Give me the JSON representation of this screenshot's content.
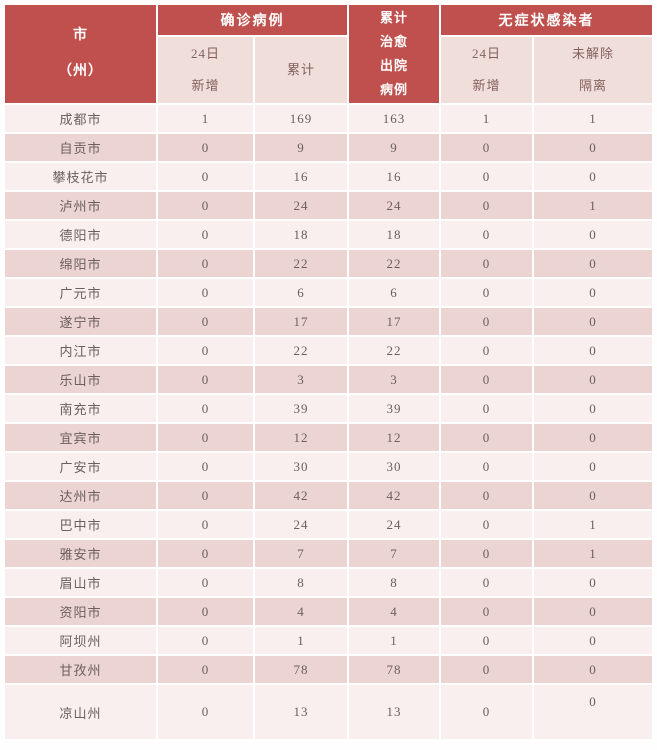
{
  "colors": {
    "header_red": "#c0504d",
    "subheader_pink": "#f0dedb",
    "row_light": "#f8efee",
    "row_dark": "#ecd4d2",
    "body_text": "#6b605d",
    "subheader_text": "#84615d",
    "grid_white": "#ffffff",
    "page_bg": "#fefefe"
  },
  "table": {
    "group_headers": {
      "city": "市\n（州）",
      "confirmed": "确诊病例",
      "cured": "累计\n治愈\n出院\n病例",
      "asymptomatic": "无症状感染者"
    },
    "sub_headers": {
      "confirmed_new": "24日\n新增",
      "confirmed_total": "累计",
      "asym_new": "24日\n新增",
      "asym_quarantine": "未解除\n隔离"
    },
    "rows": [
      {
        "city": "成都市",
        "values": [
          "1",
          "169",
          "163",
          "1",
          "1"
        ]
      },
      {
        "city": "自贡市",
        "values": [
          "0",
          "9",
          "9",
          "0",
          "0"
        ]
      },
      {
        "city": "攀枝花市",
        "values": [
          "0",
          "16",
          "16",
          "0",
          "0"
        ]
      },
      {
        "city": "泸州市",
        "values": [
          "0",
          "24",
          "24",
          "0",
          "1"
        ]
      },
      {
        "city": "德阳市",
        "values": [
          "0",
          "18",
          "18",
          "0",
          "0"
        ]
      },
      {
        "city": "绵阳市",
        "values": [
          "0",
          "22",
          "22",
          "0",
          "0"
        ]
      },
      {
        "city": "广元市",
        "values": [
          "0",
          "6",
          "6",
          "0",
          "0"
        ]
      },
      {
        "city": "遂宁市",
        "values": [
          "0",
          "17",
          "17",
          "0",
          "0"
        ]
      },
      {
        "city": "内江市",
        "values": [
          "0",
          "22",
          "22",
          "0",
          "0"
        ]
      },
      {
        "city": "乐山市",
        "values": [
          "0",
          "3",
          "3",
          "0",
          "0"
        ]
      },
      {
        "city": "南充市",
        "values": [
          "0",
          "39",
          "39",
          "0",
          "0"
        ]
      },
      {
        "city": "宜宾市",
        "values": [
          "0",
          "12",
          "12",
          "0",
          "0"
        ]
      },
      {
        "city": "广安市",
        "values": [
          "0",
          "30",
          "30",
          "0",
          "0"
        ]
      },
      {
        "city": "达州市",
        "values": [
          "0",
          "42",
          "42",
          "0",
          "0"
        ]
      },
      {
        "city": "巴中市",
        "values": [
          "0",
          "24",
          "24",
          "0",
          "1"
        ]
      },
      {
        "city": "雅安市",
        "values": [
          "0",
          "7",
          "7",
          "0",
          "1"
        ]
      },
      {
        "city": "眉山市",
        "values": [
          "0",
          "8",
          "8",
          "0",
          "0"
        ]
      },
      {
        "city": "资阳市",
        "values": [
          "0",
          "4",
          "4",
          "0",
          "0"
        ]
      },
      {
        "city": "阿坝州",
        "values": [
          "0",
          "1",
          "1",
          "0",
          "0"
        ]
      },
      {
        "city": "甘孜州",
        "values": [
          "0",
          "78",
          "78",
          "0",
          "0"
        ]
      },
      {
        "city": "凉山州",
        "values": [
          "0",
          "13",
          "13",
          "0",
          "0"
        ]
      }
    ]
  },
  "chart_data": {
    "type": "table",
    "title": "",
    "columns": [
      "市（州）",
      "确诊病例-24日新增",
      "确诊病例-累计",
      "累计治愈出院病例",
      "无症状感染者-24日新增",
      "无症状感染者-未解除隔离"
    ],
    "rows": [
      [
        "成都市",
        1,
        169,
        163,
        1,
        1
      ],
      [
        "自贡市",
        0,
        9,
        9,
        0,
        0
      ],
      [
        "攀枝花市",
        0,
        16,
        16,
        0,
        0
      ],
      [
        "泸州市",
        0,
        24,
        24,
        0,
        1
      ],
      [
        "德阳市",
        0,
        18,
        18,
        0,
        0
      ],
      [
        "绵阳市",
        0,
        22,
        22,
        0,
        0
      ],
      [
        "广元市",
        0,
        6,
        6,
        0,
        0
      ],
      [
        "遂宁市",
        0,
        17,
        17,
        0,
        0
      ],
      [
        "内江市",
        0,
        22,
        22,
        0,
        0
      ],
      [
        "乐山市",
        0,
        3,
        3,
        0,
        0
      ],
      [
        "南充市",
        0,
        39,
        39,
        0,
        0
      ],
      [
        "宜宾市",
        0,
        12,
        12,
        0,
        0
      ],
      [
        "广安市",
        0,
        30,
        30,
        0,
        0
      ],
      [
        "达州市",
        0,
        42,
        42,
        0,
        0
      ],
      [
        "巴中市",
        0,
        24,
        24,
        0,
        1
      ],
      [
        "雅安市",
        0,
        7,
        7,
        0,
        1
      ],
      [
        "眉山市",
        0,
        8,
        8,
        0,
        0
      ],
      [
        "资阳市",
        0,
        4,
        4,
        0,
        0
      ],
      [
        "阿坝州",
        0,
        1,
        1,
        0,
        0
      ],
      [
        "甘孜州",
        0,
        78,
        78,
        0,
        0
      ],
      [
        "凉山州",
        0,
        13,
        13,
        0,
        0
      ]
    ]
  }
}
